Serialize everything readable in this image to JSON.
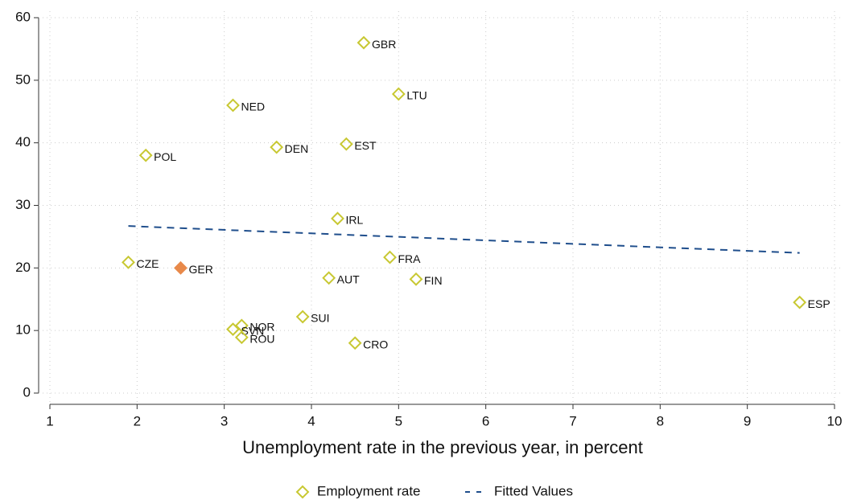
{
  "chart_data": {
    "type": "scatter",
    "x_label": "Unemployment rate in the previous year, in percent",
    "xlim": [
      1,
      10
    ],
    "xticks": [
      1,
      2,
      3,
      4,
      5,
      6,
      7,
      8,
      9,
      10
    ],
    "ylim": [
      0,
      60
    ],
    "yticks": [
      0,
      10,
      20,
      30,
      40,
      50,
      60
    ],
    "grid": true,
    "series": [
      {
        "name": "Employment rate",
        "type": "scatter",
        "color": "#c8c832",
        "labels": [
          "GBR",
          "LTU",
          "NED",
          "EST",
          "DEN",
          "POL",
          "IRL",
          "FRA",
          "CZE",
          "GER",
          "AUT",
          "FIN",
          "ESP",
          "SUI",
          "NOR",
          "SVN",
          "ROU",
          "CRO"
        ],
        "x": [
          4.6,
          5.0,
          3.1,
          4.4,
          3.6,
          2.1,
          4.3,
          4.9,
          1.9,
          2.5,
          4.2,
          5.2,
          9.6,
          3.9,
          3.2,
          3.1,
          3.2,
          4.5
        ],
        "values": [
          56,
          47.8,
          46,
          39.8,
          39.3,
          38,
          27.9,
          21.7,
          20.9,
          20.0,
          18.4,
          18.2,
          14.5,
          12.2,
          10.8,
          10.2,
          8.9,
          8.0
        ],
        "point_colors": [
          "#c8c832",
          "#c8c832",
          "#c8c832",
          "#c8c832",
          "#c8c832",
          "#c8c832",
          "#c8c832",
          "#c8c832",
          "#c8c832",
          "#e8894a",
          "#c8c832",
          "#c8c832",
          "#c8c832",
          "#c8c832",
          "#c8c832",
          "#c8c832",
          "#c8c832",
          "#c8c832"
        ]
      },
      {
        "name": "Fitted Values",
        "type": "line",
        "color": "#1f4e8c",
        "dashed": true,
        "x": [
          1.9,
          9.6
        ],
        "values": [
          26.7,
          22.4
        ]
      }
    ]
  }
}
